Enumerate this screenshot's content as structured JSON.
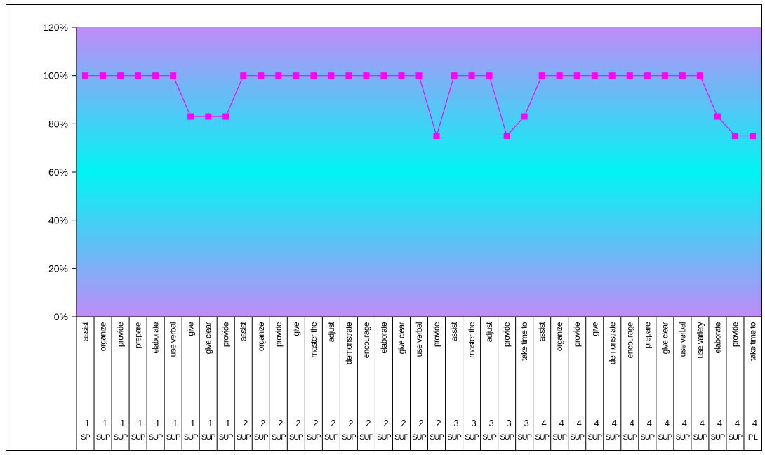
{
  "chart_data": {
    "type": "line",
    "ylim": [
      0,
      1.2
    ],
    "yticks": [
      "0%",
      "20%",
      "40%",
      "60%",
      "80%",
      "100%",
      "120%"
    ],
    "grid": false,
    "legend": "none",
    "colors": {
      "line": "#ff00ff",
      "plot_edge": "#c08cf8",
      "plot_center": "#00f4f4"
    },
    "categories": [
      {
        "label": "assist",
        "num": "1",
        "sub": "SP"
      },
      {
        "label": "organize",
        "num": "1",
        "sub": "SUP"
      },
      {
        "label": "provide",
        "num": "1",
        "sub": "SUP"
      },
      {
        "label": "prepare",
        "num": "1",
        "sub": "SUP"
      },
      {
        "label": "elaborate",
        "num": "1",
        "sub": "SUP"
      },
      {
        "label": "use verbal",
        "num": "1",
        "sub": "SUP"
      },
      {
        "label": "give",
        "num": "1",
        "sub": "SUP"
      },
      {
        "label": "give clear",
        "num": "1",
        "sub": "SUP"
      },
      {
        "label": "provide",
        "num": "1",
        "sub": "SUP"
      },
      {
        "label": "assist",
        "num": "2",
        "sub": "SUP"
      },
      {
        "label": "organize",
        "num": "2",
        "sub": "SUP"
      },
      {
        "label": "provide",
        "num": "2",
        "sub": "SUP"
      },
      {
        "label": "give",
        "num": "2",
        "sub": "SUP"
      },
      {
        "label": "master the",
        "num": "2",
        "sub": "SUP"
      },
      {
        "label": "adjust",
        "num": "2",
        "sub": "SUP"
      },
      {
        "label": "demonstrate",
        "num": "2",
        "sub": "SUP"
      },
      {
        "label": "encourage",
        "num": "2",
        "sub": "SUP"
      },
      {
        "label": "elaborate",
        "num": "2",
        "sub": "SUP"
      },
      {
        "label": "give clear",
        "num": "2",
        "sub": "SUP"
      },
      {
        "label": "use verbal",
        "num": "2",
        "sub": "SUP"
      },
      {
        "label": "provide",
        "num": "2",
        "sub": "SUP"
      },
      {
        "label": "assist",
        "num": "3",
        "sub": "SUP"
      },
      {
        "label": "master the",
        "num": "3",
        "sub": "SUP"
      },
      {
        "label": "adjust",
        "num": "3",
        "sub": "SUP"
      },
      {
        "label": "provide",
        "num": "3",
        "sub": "SUP"
      },
      {
        "label": "take time to",
        "num": "3",
        "sub": "SUP"
      },
      {
        "label": "assist",
        "num": "4",
        "sub": "SUP"
      },
      {
        "label": "organize",
        "num": "4",
        "sub": "SUP"
      },
      {
        "label": "provide",
        "num": "4",
        "sub": "SUP"
      },
      {
        "label": "give",
        "num": "4",
        "sub": "SUP"
      },
      {
        "label": "demonstrate",
        "num": "4",
        "sub": "SUP"
      },
      {
        "label": "encourage",
        "num": "4",
        "sub": "SUP"
      },
      {
        "label": "prepare",
        "num": "4",
        "sub": "SUP"
      },
      {
        "label": "give clear",
        "num": "4",
        "sub": "SUP"
      },
      {
        "label": "use verbal",
        "num": "4",
        "sub": "SUP"
      },
      {
        "label": "use variety",
        "num": "4",
        "sub": "SUP"
      },
      {
        "label": "elaborate",
        "num": "4",
        "sub": "SUP"
      },
      {
        "label": "provide",
        "num": "4",
        "sub": "SUP"
      },
      {
        "label": "take time to",
        "num": "4",
        "sub": "P L"
      }
    ],
    "series": [
      {
        "values": [
          1.0,
          1.0,
          1.0,
          1.0,
          1.0,
          1.0,
          0.83,
          0.83,
          0.83,
          1.0,
          1.0,
          1.0,
          1.0,
          1.0,
          1.0,
          1.0,
          1.0,
          1.0,
          1.0,
          1.0,
          0.75,
          1.0,
          1.0,
          1.0,
          0.75,
          0.83,
          1.0,
          1.0,
          1.0,
          1.0,
          1.0,
          1.0,
          1.0,
          1.0,
          1.0,
          1.0,
          0.83,
          0.75,
          0.75
        ]
      }
    ]
  }
}
